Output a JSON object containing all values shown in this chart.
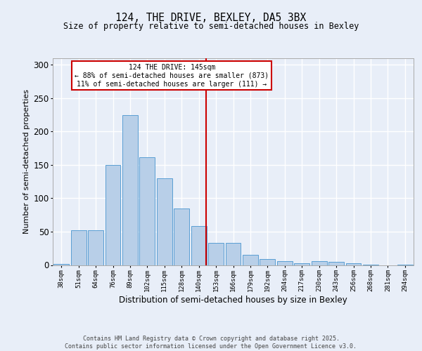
{
  "title1": "124, THE DRIVE, BEXLEY, DA5 3BX",
  "title2": "Size of property relative to semi-detached houses in Bexley",
  "xlabel": "Distribution of semi-detached houses by size in Bexley",
  "ylabel": "Number of semi-detached properties",
  "categories": [
    "38sqm",
    "51sqm",
    "64sqm",
    "76sqm",
    "89sqm",
    "102sqm",
    "115sqm",
    "128sqm",
    "140sqm",
    "153sqm",
    "166sqm",
    "179sqm",
    "192sqm",
    "204sqm",
    "217sqm",
    "230sqm",
    "243sqm",
    "256sqm",
    "268sqm",
    "281sqm",
    "294sqm"
  ],
  "values": [
    2,
    52,
    52,
    150,
    224,
    161,
    130,
    85,
    58,
    33,
    33,
    15,
    9,
    6,
    3,
    6,
    5,
    3,
    1,
    0,
    1
  ],
  "bar_color": "#b8cfe8",
  "bar_edge_color": "#5a9fd4",
  "background_color": "#e8eef8",
  "grid_color": "#ffffff",
  "vline_x_idx": 8.43,
  "vline_color": "#cc0000",
  "annotation_title": "124 THE DRIVE: 145sqm",
  "annotation_line1": "← 88% of semi-detached houses are smaller (873)",
  "annotation_line2": "11% of semi-detached houses are larger (111) →",
  "annotation_box_color": "#ffffff",
  "annotation_box_edge": "#cc0000",
  "ylim": [
    0,
    310
  ],
  "yticks": [
    0,
    50,
    100,
    150,
    200,
    250,
    300
  ],
  "footer1": "Contains HM Land Registry data © Crown copyright and database right 2025.",
  "footer2": "Contains public sector information licensed under the Open Government Licence v3.0."
}
